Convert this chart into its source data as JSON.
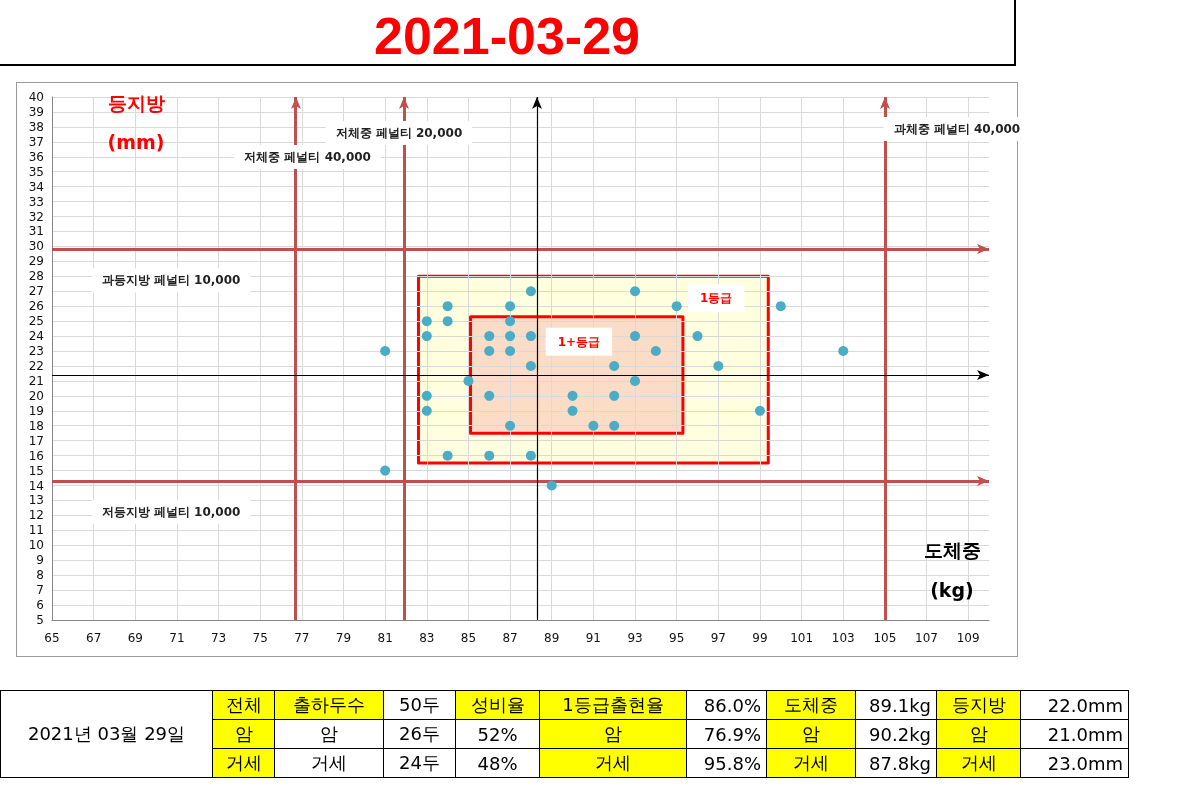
{
  "chart_data": [
    {
      "type": "scatter",
      "title": "2021-03-29",
      "xlabel": "도체중 (kg)",
      "ylabel": "등지방 (mm)",
      "xlim": [
        65,
        110
      ],
      "xticks": [
        65,
        67,
        69,
        71,
        73,
        75,
        77,
        79,
        81,
        83,
        85,
        87,
        89,
        91,
        93,
        95,
        97,
        99,
        101,
        103,
        105,
        107,
        109
      ],
      "ylim": [
        5,
        40
      ],
      "yticks": [
        5,
        6,
        7,
        8,
        9,
        10,
        11,
        12,
        13,
        14,
        15,
        16,
        17,
        18,
        19,
        20,
        21,
        22,
        23,
        24,
        25,
        26,
        27,
        28,
        29,
        30,
        31,
        32,
        33,
        34,
        35,
        36,
        37,
        38,
        39,
        40
      ],
      "grid": true,
      "marker": "circle",
      "series": [
        {
          "type": "scatter",
          "color": "#4bacc6",
          "x": [
            88,
            93,
            84,
            87,
            95,
            100,
            83,
            84,
            87,
            83,
            86,
            87,
            88,
            93,
            96,
            86,
            87,
            94,
            88,
            92,
            97,
            85,
            93,
            83,
            86,
            90,
            92,
            83,
            90,
            99,
            87,
            91,
            92,
            84,
            86,
            88,
            89,
            81,
            81,
            103
          ],
          "values": [
            27,
            27,
            26,
            26,
            26,
            26,
            25,
            25,
            25,
            24,
            24,
            24,
            24,
            24,
            24,
            23,
            23,
            23,
            22,
            22,
            22,
            21,
            21,
            20,
            20,
            20,
            20,
            19,
            19,
            19,
            18,
            18,
            18,
            16,
            16,
            16,
            14,
            23,
            15,
            23
          ]
        },
        {
          "type": "area",
          "name": "1등급",
          "color": "#ffffe0",
          "marker": "none",
          "x": [
            82.6,
            99.4,
            99.4,
            82.6,
            82.6
          ],
          "values": [
            15.5,
            15.5,
            28,
            28,
            15.5
          ]
        },
        {
          "type": "area",
          "name": "1+등급",
          "color": "#fbdcc6",
          "marker": "none",
          "x": [
            85.1,
            95.3,
            95.3,
            85.1,
            85.1
          ],
          "values": [
            17.5,
            17.5,
            25.3,
            25.3,
            17.5
          ]
        }
      ],
      "ref_lines": [
        {
          "axis": "x",
          "value": 76.7,
          "label": "저체중 페널티 40,000",
          "color": "#c0504d"
        },
        {
          "axis": "x",
          "value": 81.9,
          "label": "저체중 페널티 20,000",
          "color": "#c0504d"
        },
        {
          "axis": "x",
          "value": 105,
          "label": "과체중 페널티 40,000",
          "color": "#c0504d"
        },
        {
          "axis": "y",
          "value": 29.8,
          "label": "과등지방 페널티 10,000",
          "color": "#c0504d"
        },
        {
          "axis": "y",
          "value": 14.3,
          "label": "저등지방 페널티 10,000",
          "color": "#c0504d"
        },
        {
          "axis": "x",
          "value": 88.3,
          "color": "#000000"
        },
        {
          "axis": "y",
          "value": 21.4,
          "color": "#000000"
        }
      ]
    },
    {
      "type": "other",
      "annotations": [
        "2021년 03월 29일",
        "전체",
        "출하두수",
        "50두",
        "성비율",
        "1등급출현율",
        "86.0%",
        "도체중",
        "89.1kg",
        "등지방",
        "22.0mm",
        "암",
        "암",
        "26두",
        "52%",
        "암",
        "76.9%",
        "암",
        "90.2kg",
        "암",
        "21.0mm",
        "거세",
        "거세",
        "24두",
        "48%",
        "거세",
        "95.8%",
        "거세",
        "87.8kg",
        "거세",
        "23.0mm"
      ]
    }
  ]
}
